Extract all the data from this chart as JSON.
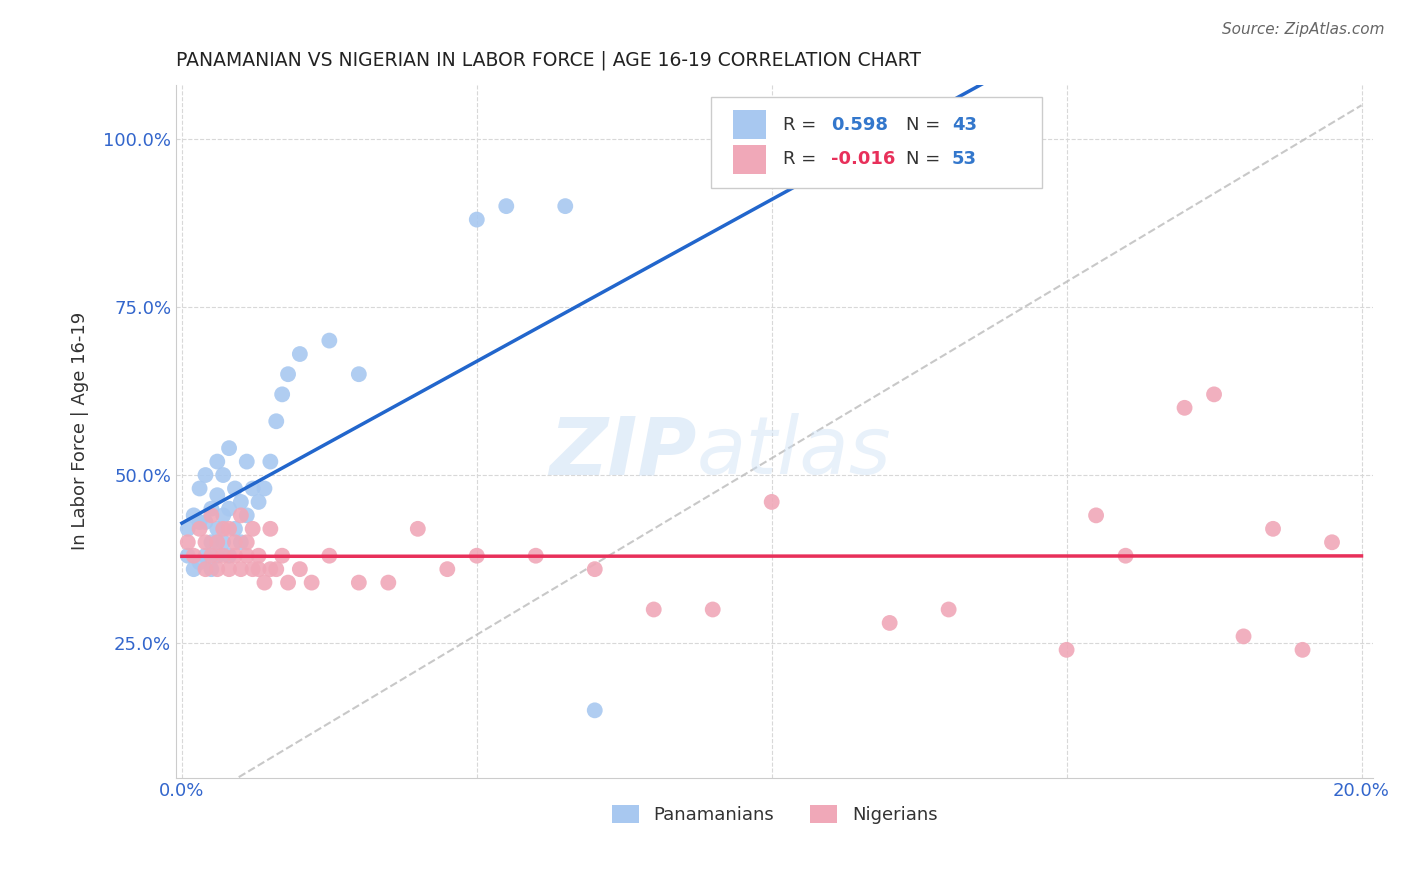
{
  "title": "PANAMANIAN VS NIGERIAN IN LABOR FORCE | AGE 16-19 CORRELATION CHART",
  "source": "Source: ZipAtlas.com",
  "ylabel": "In Labor Force | Age 16-19",
  "legend_r_pan": "0.598",
  "legend_n_pan": "43",
  "legend_r_nig": "-0.016",
  "legend_n_nig": "53",
  "pan_color": "#a8c8f0",
  "nig_color": "#f0a8b8",
  "pan_line_color": "#2266cc",
  "nig_line_color": "#e8305a",
  "diagonal_color": "#bbbbbb",
  "watermark_zip": "ZIP",
  "watermark_atlas": "atlas",
  "pan_scatter_x": [
    0.001,
    0.001,
    0.002,
    0.002,
    0.003,
    0.003,
    0.003,
    0.004,
    0.004,
    0.004,
    0.005,
    0.005,
    0.005,
    0.006,
    0.006,
    0.006,
    0.006,
    0.007,
    0.007,
    0.007,
    0.008,
    0.008,
    0.008,
    0.009,
    0.009,
    0.01,
    0.01,
    0.011,
    0.011,
    0.012,
    0.013,
    0.014,
    0.015,
    0.016,
    0.017,
    0.018,
    0.02,
    0.025,
    0.03,
    0.05,
    0.055,
    0.065,
    0.07
  ],
  "pan_scatter_y": [
    0.38,
    0.42,
    0.36,
    0.44,
    0.37,
    0.43,
    0.48,
    0.38,
    0.43,
    0.5,
    0.36,
    0.4,
    0.45,
    0.38,
    0.42,
    0.47,
    0.52,
    0.4,
    0.44,
    0.5,
    0.38,
    0.45,
    0.54,
    0.42,
    0.48,
    0.4,
    0.46,
    0.44,
    0.52,
    0.48,
    0.46,
    0.48,
    0.52,
    0.58,
    0.62,
    0.65,
    0.68,
    0.7,
    0.65,
    0.88,
    0.9,
    0.9,
    0.15
  ],
  "nig_scatter_x": [
    0.001,
    0.002,
    0.003,
    0.004,
    0.004,
    0.005,
    0.005,
    0.006,
    0.006,
    0.007,
    0.007,
    0.008,
    0.008,
    0.009,
    0.009,
    0.01,
    0.01,
    0.011,
    0.011,
    0.012,
    0.012,
    0.013,
    0.013,
    0.014,
    0.015,
    0.015,
    0.016,
    0.017,
    0.018,
    0.02,
    0.022,
    0.025,
    0.03,
    0.035,
    0.04,
    0.045,
    0.05,
    0.06,
    0.07,
    0.08,
    0.09,
    0.1,
    0.12,
    0.13,
    0.15,
    0.155,
    0.16,
    0.17,
    0.175,
    0.18,
    0.185,
    0.19,
    0.195
  ],
  "nig_scatter_y": [
    0.4,
    0.38,
    0.42,
    0.36,
    0.4,
    0.38,
    0.44,
    0.4,
    0.36,
    0.42,
    0.38,
    0.36,
    0.42,
    0.38,
    0.4,
    0.36,
    0.44,
    0.38,
    0.4,
    0.36,
    0.42,
    0.38,
    0.36,
    0.34,
    0.36,
    0.42,
    0.36,
    0.38,
    0.34,
    0.36,
    0.34,
    0.38,
    0.34,
    0.34,
    0.42,
    0.36,
    0.38,
    0.38,
    0.36,
    0.3,
    0.3,
    0.46,
    0.28,
    0.3,
    0.24,
    0.44,
    0.38,
    0.6,
    0.62,
    0.26,
    0.42,
    0.24,
    0.4
  ],
  "xlim_min": -0.001,
  "xlim_max": 0.202,
  "ylim_min": 0.05,
  "ylim_max": 1.08,
  "xtick_positions": [
    0.0,
    0.05,
    0.1,
    0.15,
    0.2
  ],
  "xtick_labels": [
    "0.0%",
    "",
    "",
    "",
    "20.0%"
  ],
  "ytick_positions": [
    0.25,
    0.5,
    0.75,
    1.0
  ],
  "ytick_labels": [
    "25.0%",
    "50.0%",
    "75.0%",
    "100.0%"
  ]
}
